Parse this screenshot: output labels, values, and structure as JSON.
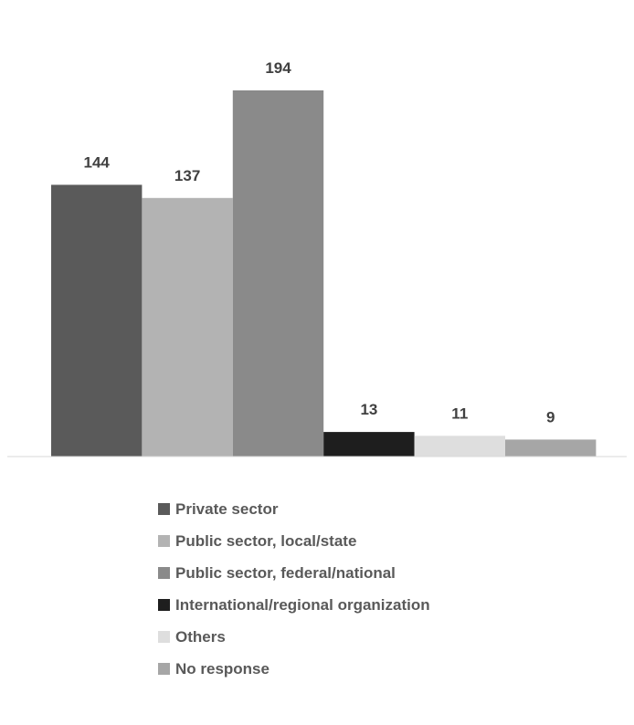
{
  "chart_data": {
    "type": "bar",
    "title": "",
    "xlabel": "",
    "ylabel": "",
    "ylim": [
      0,
      200
    ],
    "grid": false,
    "legend_position": "bottom",
    "categories": [
      "Private sector",
      "Public sector, local/state",
      "Public sector, federal/national",
      "International/regional organization",
      "Others",
      "No response"
    ],
    "values": [
      144,
      137,
      194,
      13,
      11,
      9
    ],
    "data_labels": [
      "144",
      "137",
      "194",
      "13",
      "11",
      "9"
    ],
    "colors": [
      "#5a5a5a",
      "#b3b3b3",
      "#8a8a8a",
      "#1e1e1e",
      "#dedede",
      "#a6a6a6"
    ]
  }
}
